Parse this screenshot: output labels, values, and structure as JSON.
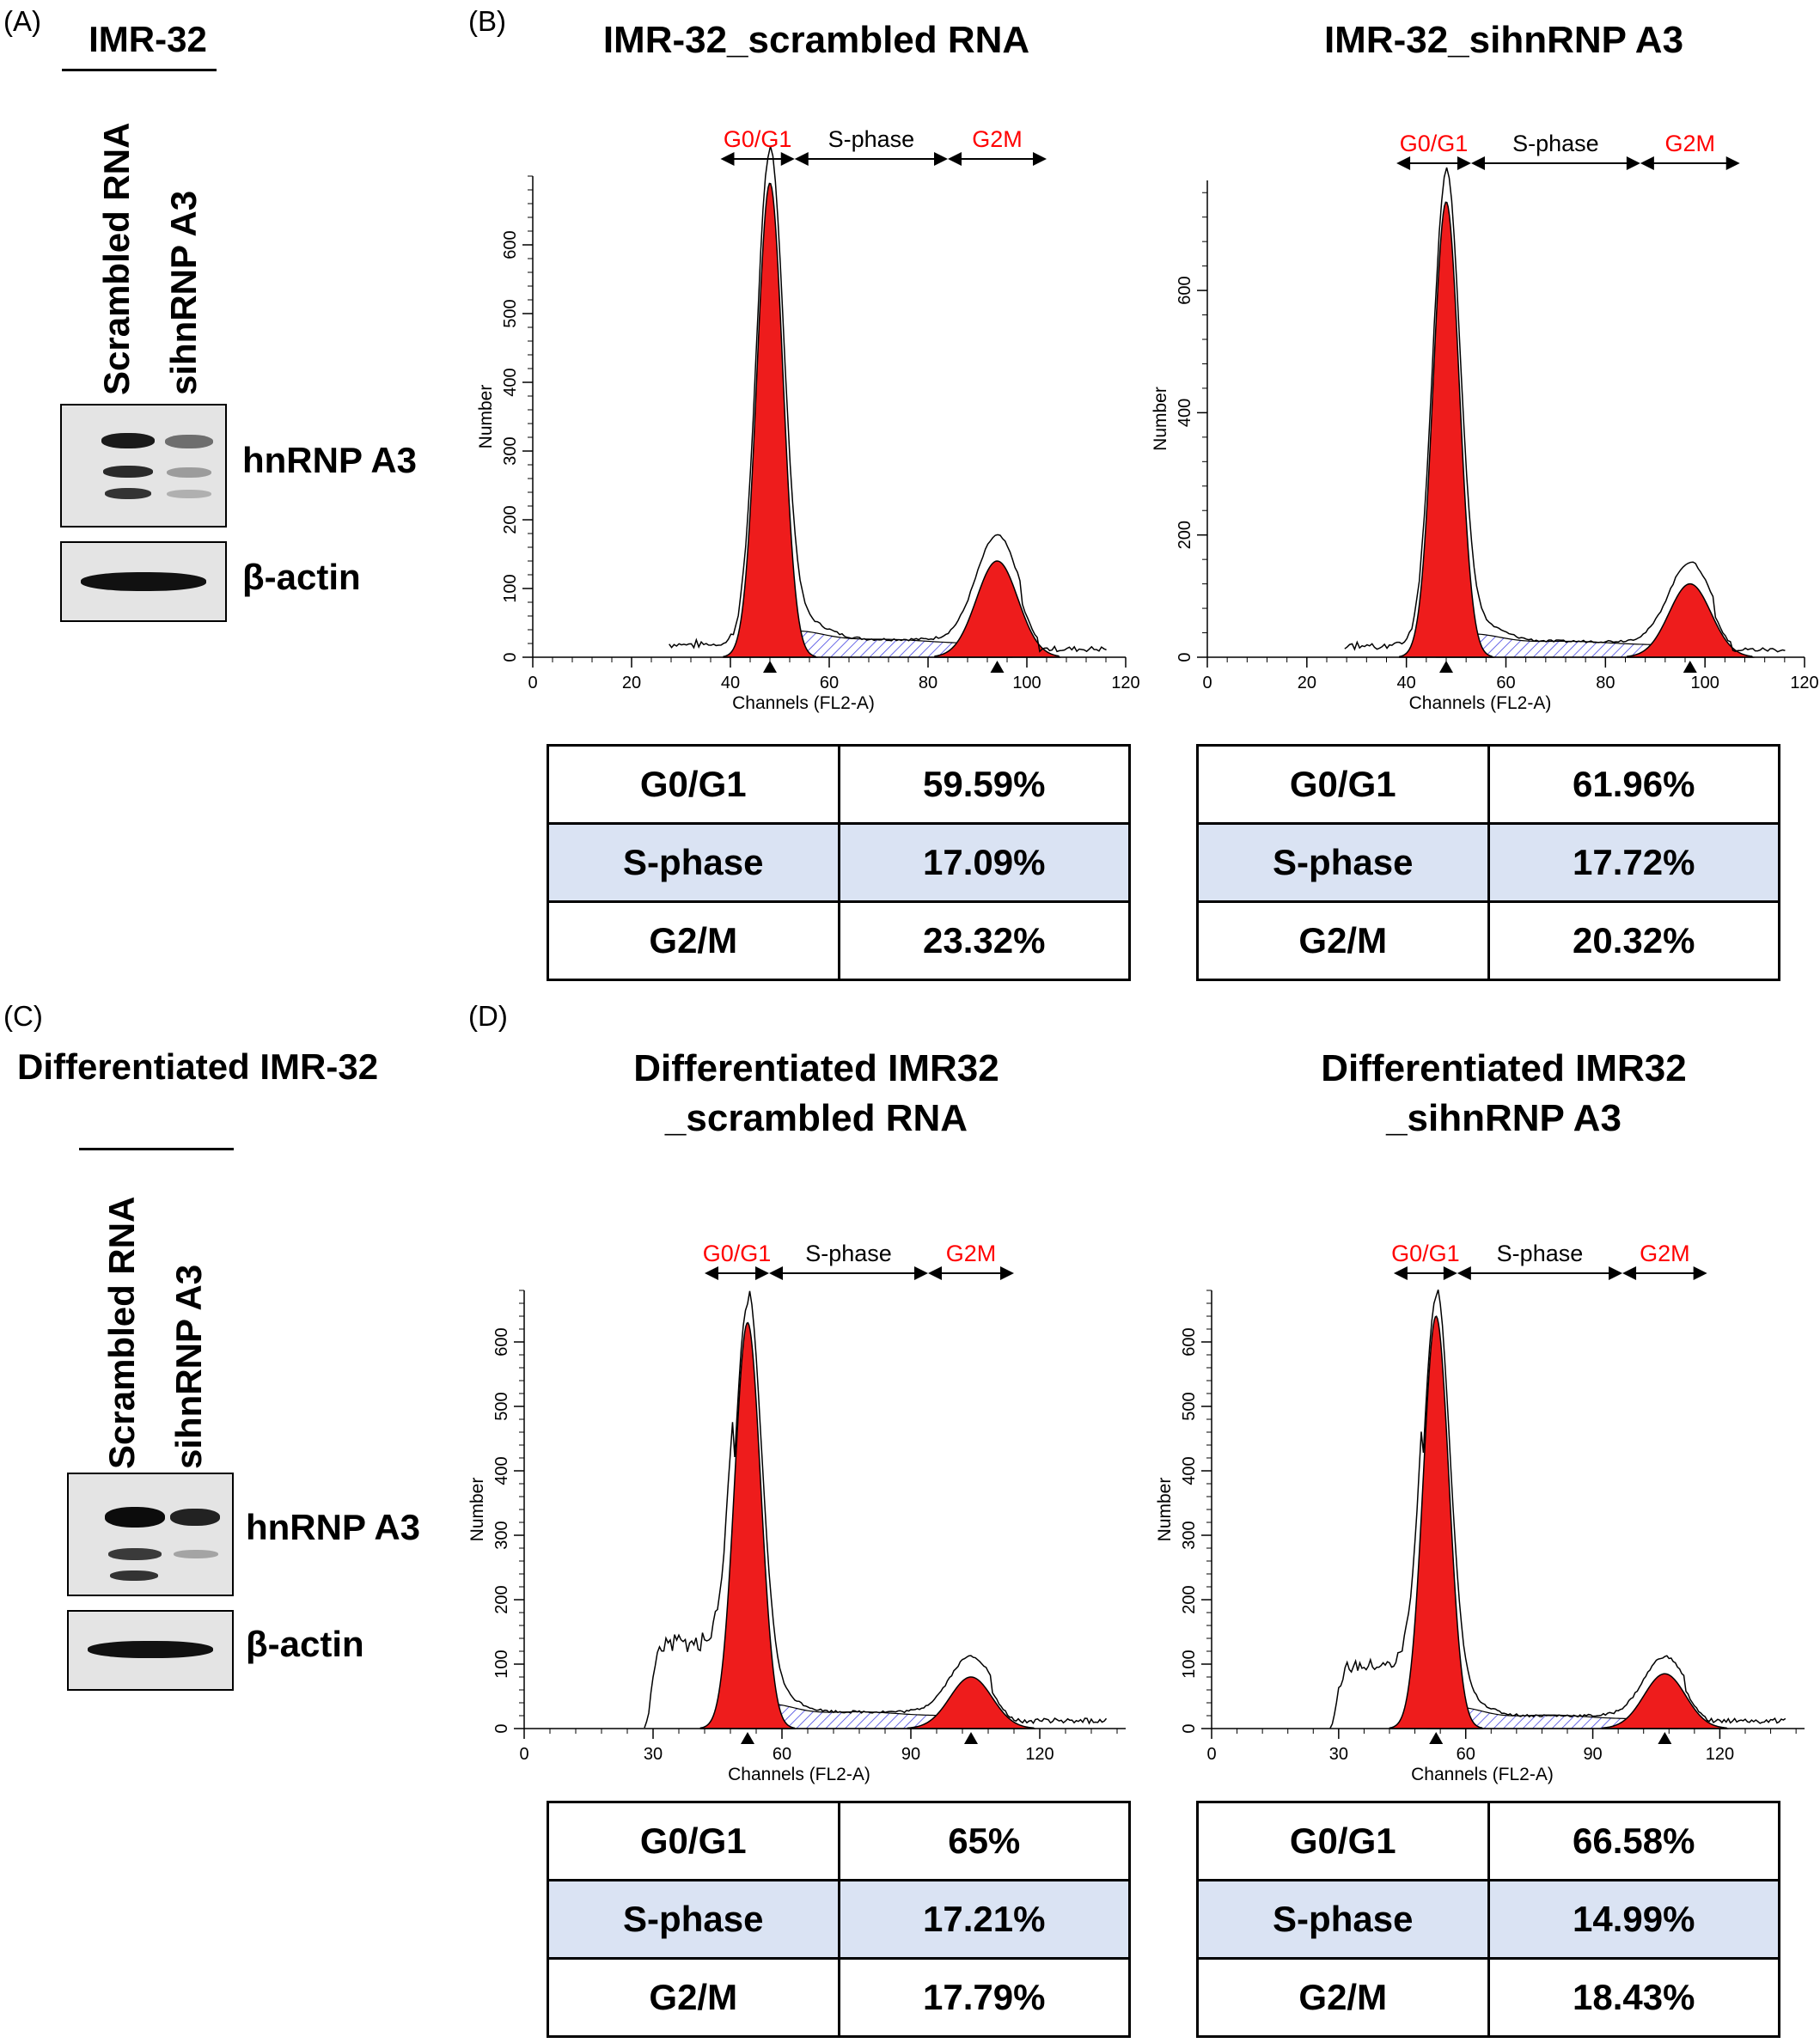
{
  "panels": {
    "A": "(A)",
    "B": "(B)",
    "C": "(C)",
    "D": "(D)"
  },
  "western_blots": [
    {
      "title": "IMR-32",
      "lanes": [
        "Scrambled RNA",
        "sihnRNP A3"
      ],
      "proteins": [
        "hnRNP A3",
        "β-actin"
      ]
    },
    {
      "title": "Differentiated IMR-32",
      "lanes": [
        "Scrambled RNA",
        "sihnRNP A3"
      ],
      "proteins": [
        "hnRNP A3",
        "β-actin"
      ]
    }
  ],
  "phase_labels": {
    "g0g1": "G0/G1",
    "s": "S-phase",
    "g2m": "G2M"
  },
  "axis_labels": {
    "x": "Channels (FL2-A)",
    "y": "Number"
  },
  "colors": {
    "g0g1_label": "#ff0000",
    "g2m_label": "#ff0000",
    "peak_fill": "#ee1c1c",
    "s_hatch": "#3a3ae0",
    "table_shade": "#dae3f3"
  },
  "chart_data": [
    {
      "type": "area",
      "title": "IMR-32_scrambled RNA",
      "xlabel": "Channels (FL2-A)",
      "ylabel": "Number",
      "xlim": [
        0,
        120
      ],
      "ylim": [
        0,
        700
      ],
      "xticks": [
        0,
        20,
        40,
        60,
        80,
        100,
        120
      ],
      "yticks": [
        0,
        100,
        200,
        300,
        400,
        500,
        600
      ],
      "g1_peak": {
        "x": 48,
        "y": 690
      },
      "g2_peak": {
        "x": 94,
        "y": 140
      },
      "s_level": 20,
      "table": [
        {
          "phase": "G0/G1",
          "value": "59.59%"
        },
        {
          "phase": "S-phase",
          "value": "17.09%"
        },
        {
          "phase": "G2/M",
          "value": "23.32%"
        }
      ]
    },
    {
      "type": "area",
      "title": "IMR-32_sihnRNP A3",
      "xlabel": "Channels (FL2-A)",
      "ylabel": "Number",
      "xlim": [
        0,
        120
      ],
      "ylim": [
        0,
        780
      ],
      "xticks": [
        0,
        20,
        40,
        60,
        80,
        100,
        120
      ],
      "yticks": [
        0,
        200,
        400,
        600
      ],
      "g1_peak": {
        "x": 48,
        "y": 745
      },
      "g2_peak": {
        "x": 97,
        "y": 120
      },
      "s_level": 20,
      "table": [
        {
          "phase": "G0/G1",
          "value": "61.96%"
        },
        {
          "phase": "S-phase",
          "value": "17.72%"
        },
        {
          "phase": "G2/M",
          "value": "20.32%"
        }
      ]
    },
    {
      "type": "area",
      "title": "Differentiated IMR32\n_scrambled RNA",
      "xlabel": "Channels (FL2-A)",
      "ylabel": "Number",
      "xlim": [
        0,
        140
      ],
      "ylim": [
        0,
        680
      ],
      "xticks": [
        0,
        30,
        60,
        90,
        120
      ],
      "yticks": [
        0,
        100,
        200,
        300,
        400,
        500,
        600
      ],
      "g1_peak": {
        "x": 52,
        "y": 630
      },
      "g2_peak": {
        "x": 104,
        "y": 80
      },
      "s_level": 20,
      "subg1_level": 130,
      "table": [
        {
          "phase": "G0/G1",
          "value": "65%"
        },
        {
          "phase": "S-phase",
          "value": "17.21%"
        },
        {
          "phase": "G2/M",
          "value": "17.79%"
        }
      ]
    },
    {
      "type": "area",
      "title": "Differentiated IMR32\n_sihnRNP A3",
      "xlabel": "Channels (FL2-A)",
      "ylabel": "Number",
      "xlim": [
        0,
        140
      ],
      "ylim": [
        0,
        680
      ],
      "xticks": [
        0,
        30,
        60,
        90,
        120
      ],
      "yticks": [
        0,
        100,
        200,
        300,
        400,
        500,
        600
      ],
      "g1_peak": {
        "x": 53,
        "y": 640
      },
      "g2_peak": {
        "x": 107,
        "y": 85
      },
      "s_level": 15,
      "subg1_level": 95,
      "table": [
        {
          "phase": "G0/G1",
          "value": "66.58%"
        },
        {
          "phase": "S-phase",
          "value": "14.99%"
        },
        {
          "phase": "G2/M",
          "value": "18.43%"
        }
      ]
    }
  ]
}
